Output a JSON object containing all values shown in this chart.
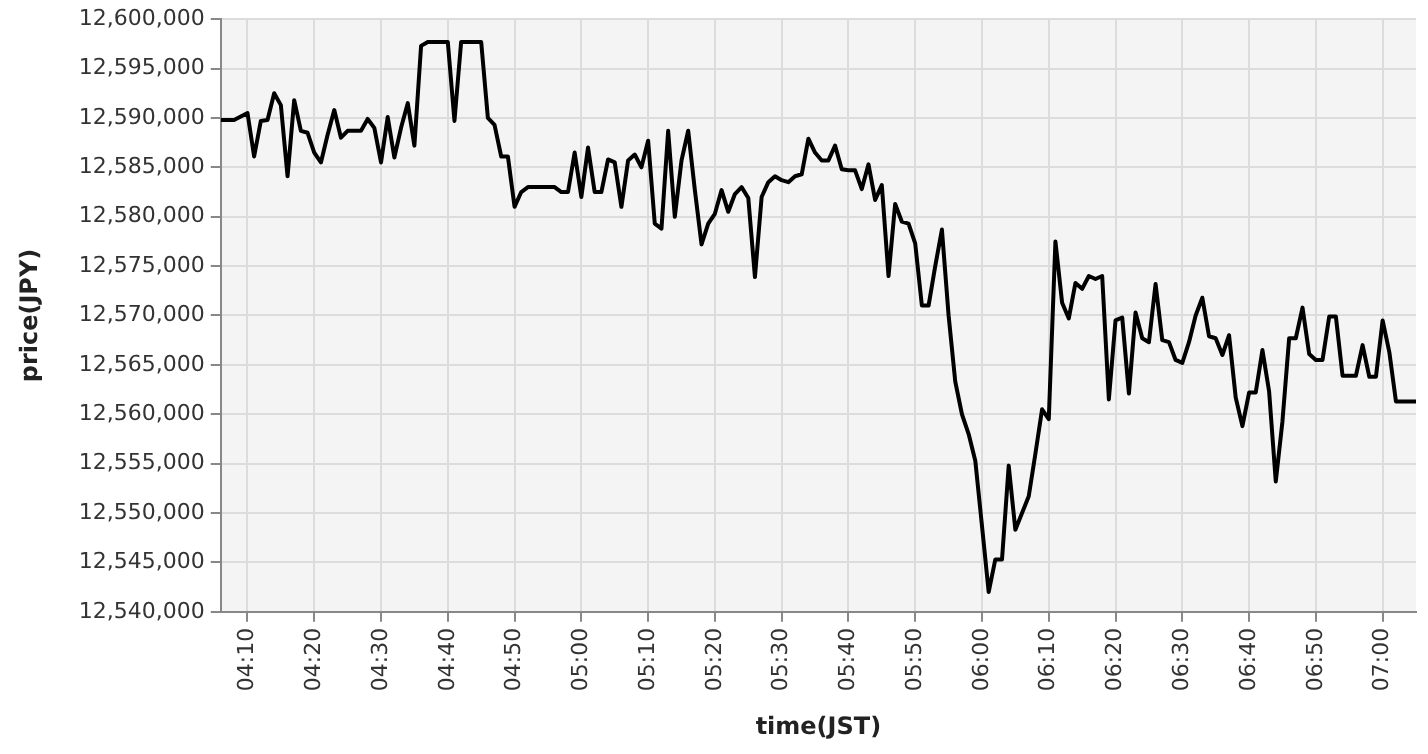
{
  "chart_data": {
    "type": "line",
    "xlabel": "time(JST)",
    "ylabel": "price(JPY)",
    "x": [
      4.1,
      4.1333,
      4.1667,
      4.1833,
      4.2,
      4.2167,
      4.2333,
      4.25,
      4.2667,
      4.2833,
      4.3,
      4.3167,
      4.3333,
      4.35,
      4.3667,
      4.3833,
      4.4,
      4.4167,
      4.45,
      4.4667,
      4.4833,
      4.5,
      4.5167,
      4.5333,
      4.55,
      4.5667,
      4.5833,
      4.6,
      4.6167,
      4.6667,
      4.6833,
      4.7,
      4.75,
      4.7667,
      4.7833,
      4.8,
      4.8167,
      4.8333,
      4.85,
      4.8667,
      4.9333,
      4.95,
      4.9667,
      4.9833,
      5,
      5.0167,
      5.0333,
      5.05,
      5.0667,
      5.0833,
      5.1,
      5.1167,
      5.1333,
      5.15,
      5.1667,
      5.1833,
      5.2,
      5.2167,
      5.2333,
      5.25,
      5.2667,
      5.2833,
      5.3,
      5.3167,
      5.3333,
      5.35,
      5.3667,
      5.3833,
      5.4,
      5.4167,
      5.4333,
      5.45,
      5.4667,
      5.4833,
      5.5,
      5.5167,
      5.5333,
      5.55,
      5.5667,
      5.5833,
      5.6,
      5.6167,
      5.6333,
      5.65,
      5.6667,
      5.6833,
      5.7,
      5.7167,
      5.7333,
      5.75,
      5.7667,
      5.7833,
      5.8,
      5.8167,
      5.8333,
      5.85,
      5.8667,
      5.8833,
      5.9,
      5.9167,
      5.9333,
      5.95,
      5.9667,
      5.9833,
      6,
      6.0167,
      6.0333,
      6.05,
      6.0667,
      6.0833,
      6.1,
      6.1167,
      6.1333,
      6.15,
      6.1667,
      6.1833,
      6.2,
      6.2167,
      6.2333,
      6.25,
      6.2667,
      6.2833,
      6.3,
      6.3167,
      6.3333,
      6.35,
      6.3667,
      6.3833,
      6.4,
      6.4167,
      6.4333,
      6.45,
      6.4667,
      6.4833,
      6.5,
      6.5167,
      6.5333,
      6.55,
      6.5667,
      6.5833,
      6.6,
      6.6167,
      6.6333,
      6.65,
      6.6667,
      6.6833,
      6.7,
      6.7167,
      6.7333,
      6.75,
      6.7667,
      6.7833,
      6.8,
      6.8167,
      6.8333,
      6.85,
      6.8667,
      6.8833,
      6.9,
      6.9333,
      6.95,
      6.9667,
      6.9833,
      7,
      7.0167,
      7.0333,
      7.0833
    ],
    "series": [
      {
        "color": "#000000",
        "values": [
          12589800,
          12589800,
          12590500,
          12586100,
          12589700,
          12589800,
          12592500,
          12591300,
          12584100,
          12591800,
          12588700,
          12588500,
          12586500,
          12585500,
          12588300,
          12590800,
          12588000,
          12588700,
          12588700,
          12589900,
          12589000,
          12585500,
          12590100,
          12586000,
          12589000,
          12591500,
          12587200,
          12597300,
          12597700,
          12597700,
          12589700,
          12597700,
          12597700,
          12590000,
          12589300,
          12586100,
          12586100,
          12581000,
          12582500,
          12583000,
          12583000,
          12582500,
          12582500,
          12586500,
          12582000,
          12587000,
          12582500,
          12582500,
          12585800,
          12585500,
          12581000,
          12585700,
          12586300,
          12585000,
          12587700,
          12579300,
          12578800,
          12588700,
          12580000,
          12585700,
          12588700,
          12582700,
          12577200,
          12579300,
          12580300,
          12582700,
          12580500,
          12582300,
          12583000,
          12581900,
          12573900,
          12582000,
          12583500,
          12584100,
          12583700,
          12583500,
          12584100,
          12584300,
          12587900,
          12586500,
          12585700,
          12585700,
          12587200,
          12584800,
          12584700,
          12584700,
          12582800,
          12585300,
          12581700,
          12583200,
          12574000,
          12581300,
          12579500,
          12579300,
          12577300,
          12571000,
          12571000,
          12575000,
          12578700,
          12570000,
          12563300,
          12560000,
          12558000,
          12555300,
          12548700,
          12542000,
          12545300,
          12545300,
          12554800,
          12548300,
          12550000,
          12551700,
          12556000,
          12560500,
          12559500,
          12577500,
          12571300,
          12569700,
          12573300,
          12572700,
          12574000,
          12573700,
          12574000,
          12561500,
          12569500,
          12569800,
          12562100,
          12570300,
          12567700,
          12567300,
          12573200,
          12567500,
          12567300,
          12565500,
          12565200,
          12567300,
          12570000,
          12571800,
          12567900,
          12567700,
          12566000,
          12568000,
          12561700,
          12558800,
          12562200,
          12562200,
          12566500,
          12562300,
          12553200,
          12559300,
          12567700,
          12567700,
          12570800,
          12566100,
          12565500,
          12565500,
          12569900,
          12569900,
          12563900,
          12563900,
          12567000,
          12563800,
          12563800,
          12569500,
          12566300,
          12561300,
          12561300
        ]
      }
    ],
    "xlim": [
      4.1,
      7.0833
    ],
    "xticks": [
      {
        "value": 4.1667,
        "label": "04:10"
      },
      {
        "value": 4.3333,
        "label": "04:20"
      },
      {
        "value": 4.5,
        "label": "04:30"
      },
      {
        "value": 4.6667,
        "label": "04:40"
      },
      {
        "value": 4.8333,
        "label": "04:50"
      },
      {
        "value": 5,
        "label": "05:00"
      },
      {
        "value": 5.1667,
        "label": "05:10"
      },
      {
        "value": 5.3333,
        "label": "05:20"
      },
      {
        "value": 5.5,
        "label": "05:30"
      },
      {
        "value": 5.6667,
        "label": "05:40"
      },
      {
        "value": 5.8333,
        "label": "05:50"
      },
      {
        "value": 6,
        "label": "06:00"
      },
      {
        "value": 6.1667,
        "label": "06:10"
      },
      {
        "value": 6.3333,
        "label": "06:20"
      },
      {
        "value": 6.5,
        "label": "06:30"
      },
      {
        "value": 6.6667,
        "label": "06:40"
      },
      {
        "value": 6.8333,
        "label": "06:50"
      },
      {
        "value": 7,
        "label": "07:00"
      }
    ],
    "ylim": [
      12540000,
      12600000
    ],
    "yticks": [
      {
        "value": 12540000,
        "label": "12,540,000"
      },
      {
        "value": 12545000,
        "label": "12,545,000"
      },
      {
        "value": 12550000,
        "label": "12,550,000"
      },
      {
        "value": 12555000,
        "label": "12,555,000"
      },
      {
        "value": 12560000,
        "label": "12,560,000"
      },
      {
        "value": 12565000,
        "label": "12,565,000"
      },
      {
        "value": 12570000,
        "label": "12,570,000"
      },
      {
        "value": 12575000,
        "label": "12,575,000"
      },
      {
        "value": 12580000,
        "label": "12,580,000"
      },
      {
        "value": 12585000,
        "label": "12,585,000"
      },
      {
        "value": 12590000,
        "label": "12,590,000"
      },
      {
        "value": 12595000,
        "label": "12,595,000"
      },
      {
        "value": 12600000,
        "label": "12,600,000"
      }
    ],
    "grid": true
  }
}
